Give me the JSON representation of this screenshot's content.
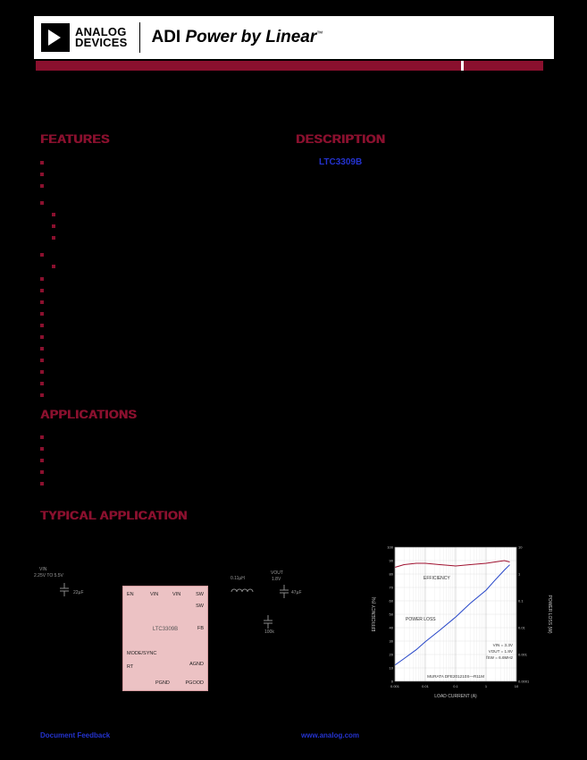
{
  "header": {
    "logo_line1": "ANALOG",
    "logo_line2": "DEVICES",
    "brand_adi": "ADI",
    "brand_power": "Power by Linear",
    "brand_tm": "™"
  },
  "colors": {
    "accent_maroon": "#8a102e",
    "link_blue": "#2433cf",
    "chip_pink": "#ecc2c4",
    "efficiency_red": "#a01230",
    "power_loss_blue": "#2545c8"
  },
  "sections": {
    "features_title": "FEATURES",
    "description_title": "DESCRIPTION",
    "description_link": "LTC3309B",
    "applications_title": "APPLICATIONS",
    "typical_application_title": "TYPICAL APPLICATION"
  },
  "features_bullets": [
    {
      "y": 180,
      "indent": 0
    },
    {
      "y": 193,
      "indent": 0
    },
    {
      "y": 206,
      "indent": 0
    },
    {
      "y": 225,
      "indent": 0
    },
    {
      "y": 238,
      "indent": 1
    },
    {
      "y": 251,
      "indent": 1
    },
    {
      "y": 264,
      "indent": 1
    },
    {
      "y": 283,
      "indent": 0
    },
    {
      "y": 296,
      "indent": 1
    },
    {
      "y": 310,
      "indent": 0
    },
    {
      "y": 323,
      "indent": 0
    },
    {
      "y": 336,
      "indent": 0
    },
    {
      "y": 349,
      "indent": 0
    },
    {
      "y": 362,
      "indent": 0
    },
    {
      "y": 375,
      "indent": 0
    },
    {
      "y": 388,
      "indent": 0
    },
    {
      "y": 401,
      "indent": 0
    },
    {
      "y": 414,
      "indent": 0
    },
    {
      "y": 427,
      "indent": 0
    },
    {
      "y": 440,
      "indent": 0
    }
  ],
  "applications_bullets": [
    {
      "y": 487,
      "indent": 0
    },
    {
      "y": 500,
      "indent": 0
    },
    {
      "y": 513,
      "indent": 0
    },
    {
      "y": 526,
      "indent": 0
    },
    {
      "y": 539,
      "indent": 0
    }
  ],
  "schematic": {
    "chip_label": "LTC3309B",
    "pins": {
      "en": "EN",
      "vin1": "VIN",
      "vin2": "VIN",
      "sw1": "SW",
      "sw2": "SW",
      "fb": "FB",
      "mode_sync": "MODE/SYNC",
      "rt": "RT",
      "pgnd": "PGND",
      "pgood": "PGOOD",
      "agnd": "AGND"
    },
    "labels": {
      "vin": "VIN",
      "vin_range": "2.25V TO 5.5V",
      "cin": "22µF",
      "inductor": "0.11µH",
      "vout": "VOUT",
      "vout_v": "1.8V",
      "cout": "47µF",
      "rfb": "100k"
    }
  },
  "chart_data": {
    "type": "line",
    "x": [
      0.001,
      0.002,
      0.005,
      0.01,
      0.03,
      0.1,
      0.3,
      1,
      2,
      4,
      6
    ],
    "x_scale": "log",
    "xlabel": "LOAD CURRENT (A)",
    "ylabel_left": "EFFICIENCY (%)",
    "ylabel_right": "POWER LOSS (W)",
    "ylim_left": [
      0,
      100
    ],
    "ylim_right_log": [
      0.0001,
      10
    ],
    "grid": true,
    "legend_position": "in-plot",
    "series": [
      {
        "name": "EFFICIENCY",
        "axis": "left",
        "unit": "%",
        "values": [
          85,
          87,
          88,
          88,
          87,
          86,
          87,
          88,
          89,
          90,
          89
        ]
      },
      {
        "name": "POWER LOSS",
        "axis": "right",
        "unit": "W",
        "values": [
          0.0004,
          0.0007,
          0.0015,
          0.003,
          0.008,
          0.025,
          0.08,
          0.25,
          0.6,
          1.4,
          2.2
        ]
      }
    ],
    "annotations": {
      "line1": "VIN = 3.3V",
      "line2": "VOUT = 1.8V",
      "line3": "fSW = 6.6MHz",
      "footnote": "MURATA DFE201210S—R11M"
    },
    "in_plot_labels": {
      "efficiency": "EFFICIENCY",
      "power_loss": "POWER LOSS"
    }
  },
  "footer": {
    "feedback_link": "Document Feedback",
    "website_link": "www.analog.com"
  }
}
